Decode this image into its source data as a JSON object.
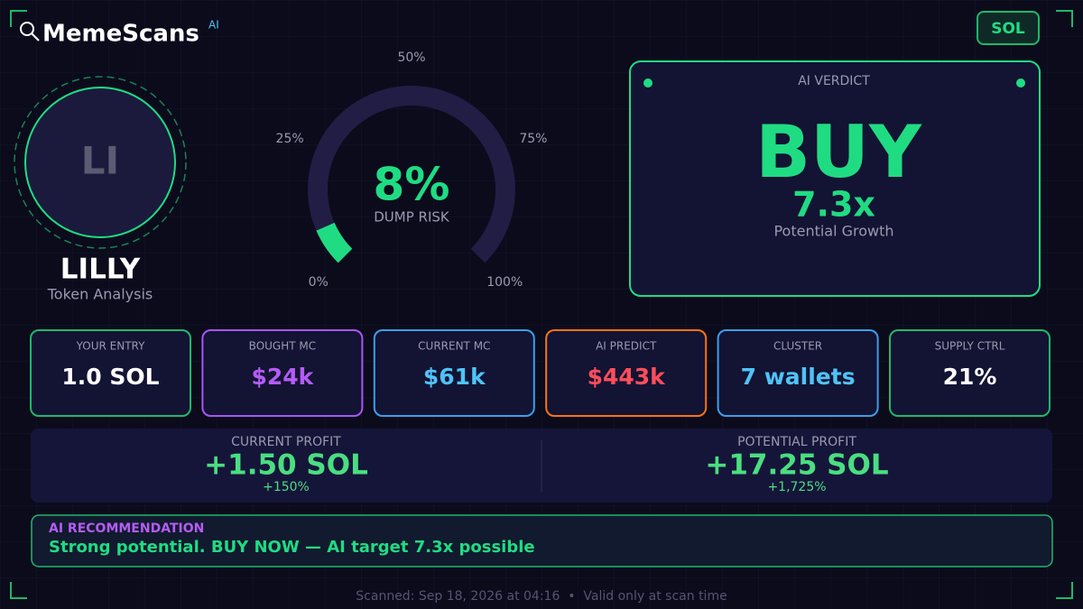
{
  "header": {
    "brand": "MemeScans",
    "brand_sup": "AI",
    "chain": "SOL"
  },
  "token": {
    "initials": "LI",
    "name": "LILLY",
    "subtitle": "Token Analysis"
  },
  "gauge": {
    "value": 8,
    "value_label": "8%",
    "label": "DUMP RISK",
    "ticks": [
      {
        "value": 0,
        "label": "0%"
      },
      {
        "value": 25,
        "label": "25%"
      },
      {
        "value": 50,
        "label": "50%"
      },
      {
        "value": 75,
        "label": "75%"
      },
      {
        "value": 100,
        "label": "100%"
      }
    ]
  },
  "verdict": {
    "title": "AI VERDICT",
    "call": "BUY",
    "multiple": "7.3x",
    "multiple_label": "Potential Growth"
  },
  "cards": [
    {
      "label": "YOUR ENTRY",
      "value": "1.0 SOL"
    },
    {
      "label": "BOUGHT MC",
      "value": "$24k"
    },
    {
      "label": "CURRENT MC",
      "value": "$61k"
    },
    {
      "label": "AI PREDICT",
      "value": "$443k"
    },
    {
      "label": "CLUSTER",
      "value": "7 wallets"
    },
    {
      "label": "SUPPLY CTRL",
      "value": "21%"
    }
  ],
  "profit": [
    {
      "label": "CURRENT PROFIT",
      "value": "+1.50 SOL",
      "percent": "+150%"
    },
    {
      "label": "POTENTIAL PROFIT",
      "value": "+17.25 SOL",
      "percent": "+1,725%"
    }
  ],
  "recommendation": {
    "title": "AI RECOMMENDATION",
    "text": "Strong potential. BUY NOW — AI target 7.3x possible"
  },
  "footer": {
    "text": "Scanned: Sep 18, 2026 at 04:16  •  Valid only at scan time"
  }
}
